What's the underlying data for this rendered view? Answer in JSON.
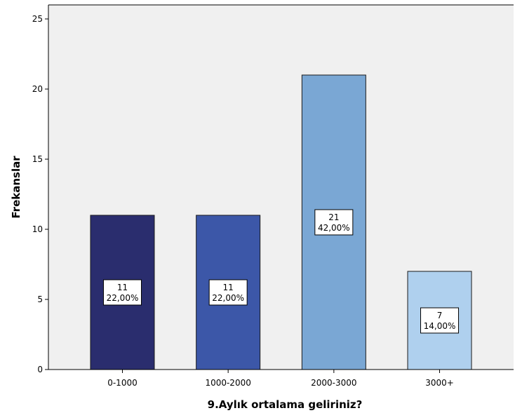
{
  "chart_data": {
    "type": "bar",
    "xlabel": "9.Aylık ortalama geliriniz?",
    "ylabel": "Frekanslar",
    "categories": [
      "0-1000",
      "1000-2000",
      "2000-3000",
      "3000+"
    ],
    "values": [
      11,
      11,
      21,
      7
    ],
    "percent_labels": [
      "22,00%",
      "22,00%",
      "42,00%",
      "14,00%"
    ],
    "bar_colors": [
      "#2a2d6e",
      "#3c57a8",
      "#7aa7d4",
      "#afd0ee"
    ],
    "ylim": [
      0,
      26
    ],
    "yticks": [
      0,
      5,
      10,
      15,
      20,
      25
    ],
    "grid": false,
    "background": "#f0f0f0"
  }
}
